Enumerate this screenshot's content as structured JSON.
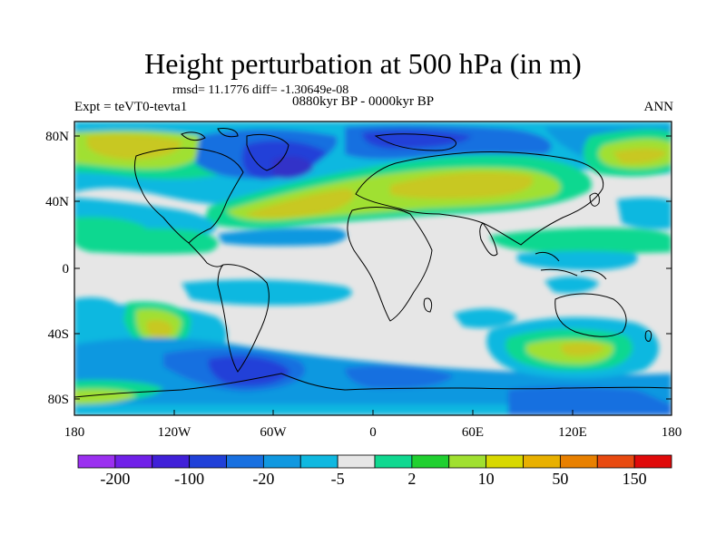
{
  "title": "Height perturbation at 500 hPa (in m)",
  "stats": "rmsd= 11.1776  diff= -1.30649e-08",
  "period": "0880kyr BP - 0000kyr BP",
  "experiment": "Expt = teVT0-tevta1",
  "season": "ANN",
  "y_ticks": [
    "80N",
    "40N",
    "0",
    "40S",
    "80S"
  ],
  "x_ticks": [
    "180",
    "120W",
    "60W",
    "0",
    "60E",
    "120E",
    "180"
  ],
  "colorbar": {
    "colors": [
      "#9b30f0",
      "#7020e8",
      "#4020d8",
      "#2040d8",
      "#1870e0",
      "#1098e0",
      "#10b8e0",
      "#e6e6e6",
      "#10d890",
      "#20d030",
      "#a0e030",
      "#d8d800",
      "#e8b000",
      "#e88000",
      "#e84a10",
      "#e00a0a"
    ],
    "labels": [
      "-200",
      "-100",
      "-20",
      "-5",
      "2",
      "10",
      "50",
      "150"
    ]
  },
  "palette": {
    "neutral": "#e6e6e6",
    "dark_blue": "#2040d8",
    "mid_blue": "#1870e0",
    "light_blue": "#10b8e0",
    "teal": "#10d890",
    "green": "#20d030",
    "yellow_green": "#a0e030",
    "olive": "#c8c820"
  }
}
